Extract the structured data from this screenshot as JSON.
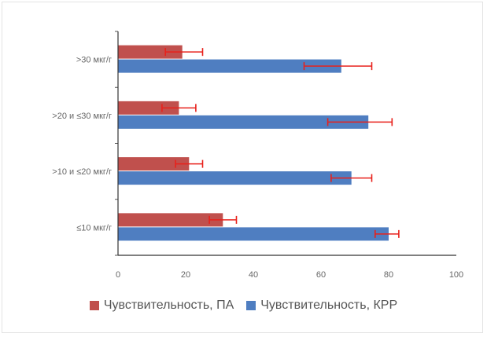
{
  "chart_data": {
    "type": "bar",
    "orientation": "horizontal",
    "categories": [
      ">30 мкг/г",
      ">20 и ≤30 мкг/г",
      ">10 и ≤20 мкг/г",
      "≤10 мкг/г"
    ],
    "series": [
      {
        "name": "Чувствительность, ПА",
        "values": [
          19,
          18,
          21,
          31
        ],
        "error_low": [
          14,
          13,
          17,
          27
        ],
        "error_high": [
          25,
          23,
          25,
          35
        ],
        "color": "#c0504d"
      },
      {
        "name": "Чувствительность, КРР",
        "values": [
          66,
          74,
          69,
          80
        ],
        "error_low": [
          55,
          62,
          63,
          76
        ],
        "error_high": [
          75,
          81,
          75,
          83
        ],
        "color": "#4f7ec1"
      }
    ],
    "xlim": [
      0,
      100
    ],
    "xticks": [
      0,
      20,
      40,
      60,
      80,
      100
    ],
    "grid": false,
    "legend_position": "bottom",
    "error_bar_color": "#e8211b"
  }
}
